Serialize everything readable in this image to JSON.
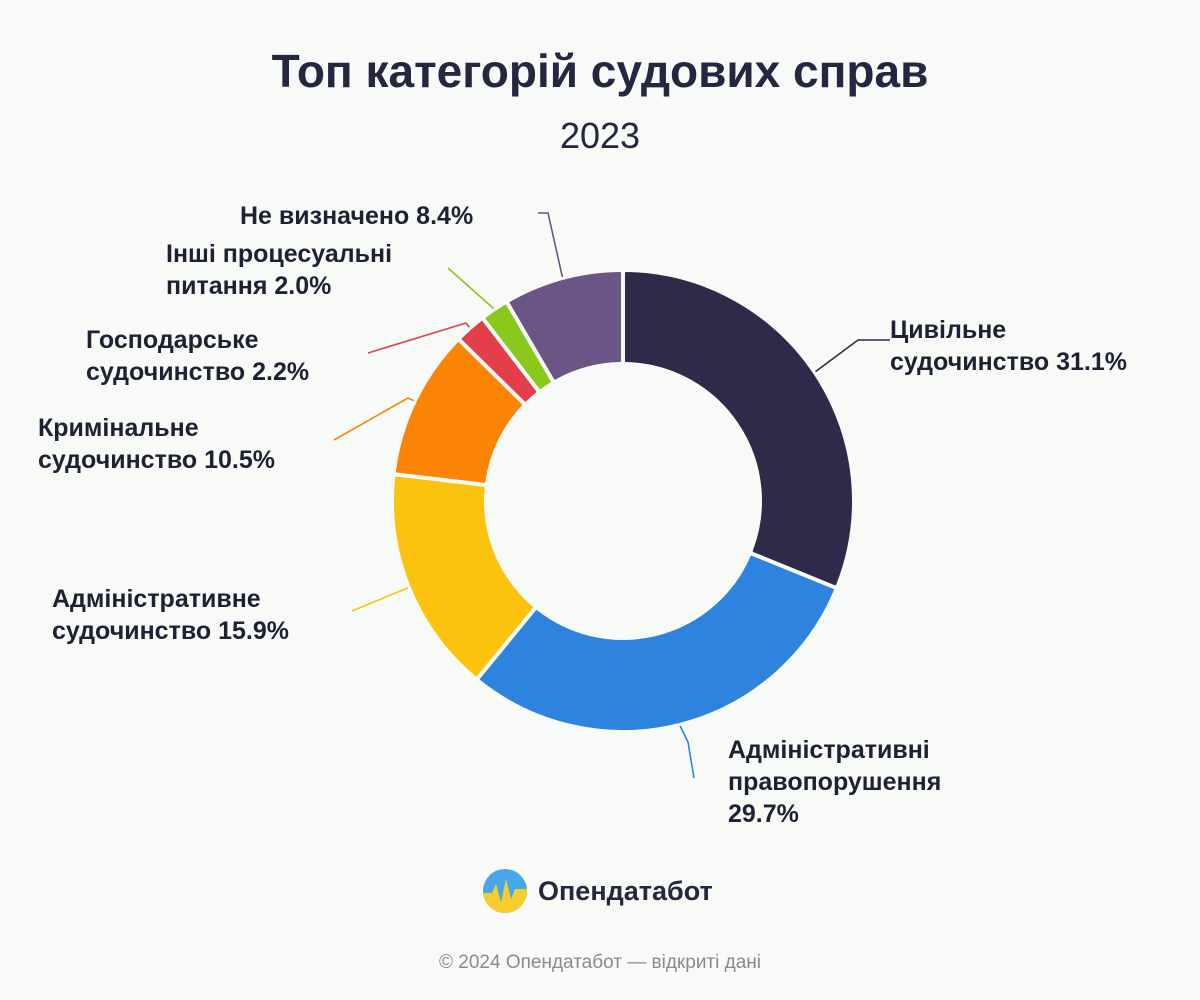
{
  "header": {
    "title": "Топ категорій судових справ",
    "subtitle": "2023"
  },
  "chart_data": {
    "type": "pie",
    "title": "Топ категорій судових справ",
    "subtitle": "2023",
    "unit": "%",
    "donut": true,
    "slices": [
      {
        "label": "Цивільне судочинство",
        "value": 31.1,
        "display": "31.1%",
        "color": "#2e2a4a",
        "label_lines": [
          "Цивільне",
          "судочинство 31.1%"
        ]
      },
      {
        "label": "Адміністративні правопорушення",
        "value": 29.7,
        "display": "29.7%",
        "color": "#2e83de",
        "label_lines": [
          "Адміністративні",
          "правопорушення",
          "29.7%"
        ]
      },
      {
        "label": "Адміністративне судочинство",
        "value": 15.9,
        "display": "15.9%",
        "color": "#fbc30d",
        "label_lines": [
          "Адміністративне",
          "судочинство 15.9%"
        ]
      },
      {
        "label": "Кримінальне судочинство",
        "value": 10.5,
        "display": "10.5%",
        "color": "#fb8405",
        "label_lines": [
          "Кримінальне",
          "судочинство 10.5%"
        ]
      },
      {
        "label": "Господарське судочинство",
        "value": 2.2,
        "display": "2.2%",
        "color": "#e33e4a",
        "label_lines": [
          "Господарське",
          "судочинство 2.2%"
        ]
      },
      {
        "label": "Інші процесуальні питання",
        "value": 2.0,
        "display": "2.0%",
        "color": "#8ac81e",
        "label_lines": [
          "Інші процесуальні",
          "питання 2.0%"
        ]
      },
      {
        "label": "Не визначено",
        "value": 8.4,
        "display": "8.4%",
        "color": "#6b5586",
        "label_lines": [
          "Не визначено 8.4%"
        ]
      }
    ]
  },
  "brand": {
    "name": "Опендатабот",
    "logo_icon": "opendatabot-logo-icon"
  },
  "footer": {
    "text": "© 2024 Опендатабот — відкриті дані"
  }
}
